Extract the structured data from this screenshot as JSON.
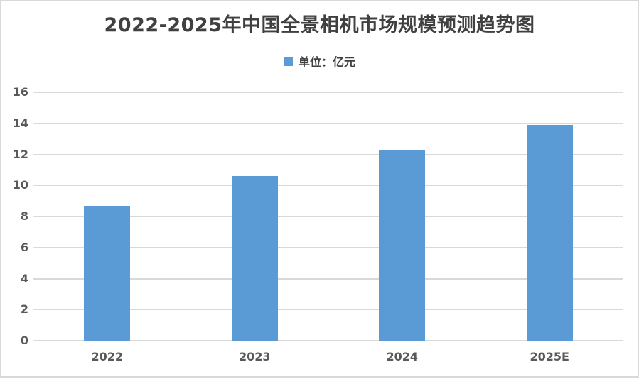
{
  "page": {
    "title": "2022-2025年中国全景相机市场规模预测趋势图",
    "legend": {
      "label": "单位：亿元",
      "marker_color": "#5B9BD5",
      "marker_icon": "legend-square-icon"
    }
  },
  "chart_data": {
    "type": "bar",
    "title": "2022-2025年中国全景相机市场规模预测趋势图",
    "series_name": "单位：亿元",
    "categories": [
      "2022",
      "2023",
      "2024",
      "2025E"
    ],
    "values": [
      8.7,
      10.6,
      12.3,
      13.9
    ],
    "ylim": [
      0,
      16
    ],
    "yticks": [
      0,
      2,
      4,
      6,
      8,
      10,
      12,
      14,
      16
    ],
    "xlabel": "",
    "ylabel": "",
    "grid": "horizontal",
    "legend_position": "top-center",
    "colors": {
      "bar": "#5B9BD5",
      "gridline": "#d9d9d9",
      "axis_label": "#595959",
      "title": "#404040",
      "frame_border": "#d9d9d9"
    }
  }
}
